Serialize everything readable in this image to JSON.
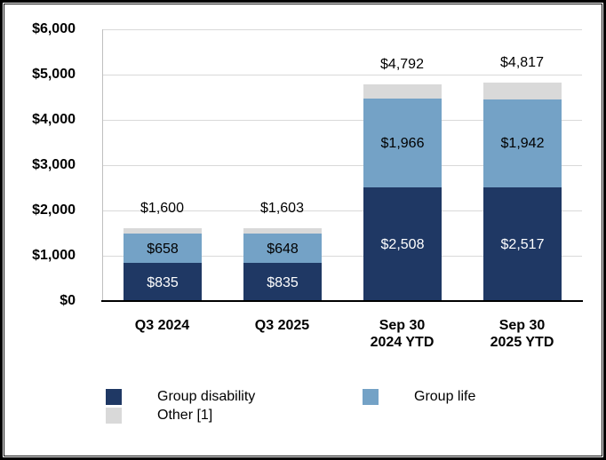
{
  "chart_data": {
    "type": "bar",
    "subtype": "stacked",
    "title": "",
    "xlabel": "",
    "ylabel": "",
    "categories": [
      [
        "Q3 2024"
      ],
      [
        "Q3 2025"
      ],
      [
        "Sep 30",
        "2024 YTD"
      ],
      [
        "Sep 30",
        "2025 YTD"
      ]
    ],
    "series": [
      {
        "name": "Group disability",
        "color": "#1F3864",
        "values": [
          835,
          835,
          2508,
          2517
        ],
        "value_labels": [
          "$835",
          "$835",
          "$2,508",
          "$2,517"
        ],
        "label_color": "#FFFFFF"
      },
      {
        "name": "Group life",
        "color": "#74A2C6",
        "values": [
          658,
          648,
          1966,
          1942
        ],
        "value_labels": [
          "$658",
          "$648",
          "$1,966",
          "$1,942"
        ],
        "label_color": "#000000"
      },
      {
        "name": "Other [1]",
        "color": "#D9D9D9",
        "values": [
          107,
          120,
          318,
          358
        ],
        "value_labels": [
          "",
          "",
          "",
          ""
        ],
        "label_color": "#000000"
      }
    ],
    "totals": [
      "$1,600",
      "$1,603",
      "$4,792",
      "$4,817"
    ],
    "y_axis": {
      "min": 0,
      "max": 6000,
      "tick_step": 1000,
      "ticks": [
        {
          "value": 0,
          "label": "$0"
        },
        {
          "value": 1000,
          "label": "$1,000"
        },
        {
          "value": 2000,
          "label": "$2,000"
        },
        {
          "value": 3000,
          "label": "$3,000"
        },
        {
          "value": 4000,
          "label": "$4,000"
        },
        {
          "value": 5000,
          "label": "$5,000"
        },
        {
          "value": 6000,
          "label": "$6,000"
        }
      ]
    },
    "grid": true,
    "legend": {
      "position": "bottom",
      "items": [
        {
          "label": "Group disability",
          "color": "#1F3864"
        },
        {
          "label": "Group life",
          "color": "#74A2C6"
        },
        {
          "label": "Other [1]",
          "color": "#D9D9D9"
        }
      ]
    },
    "colors": {
      "gridline": "#D9D9D9",
      "y_axis_line": "#BFBFBF",
      "baseline": "#000000",
      "frame": "#000000",
      "background": "#FFFFFF",
      "text": "#000000"
    }
  }
}
